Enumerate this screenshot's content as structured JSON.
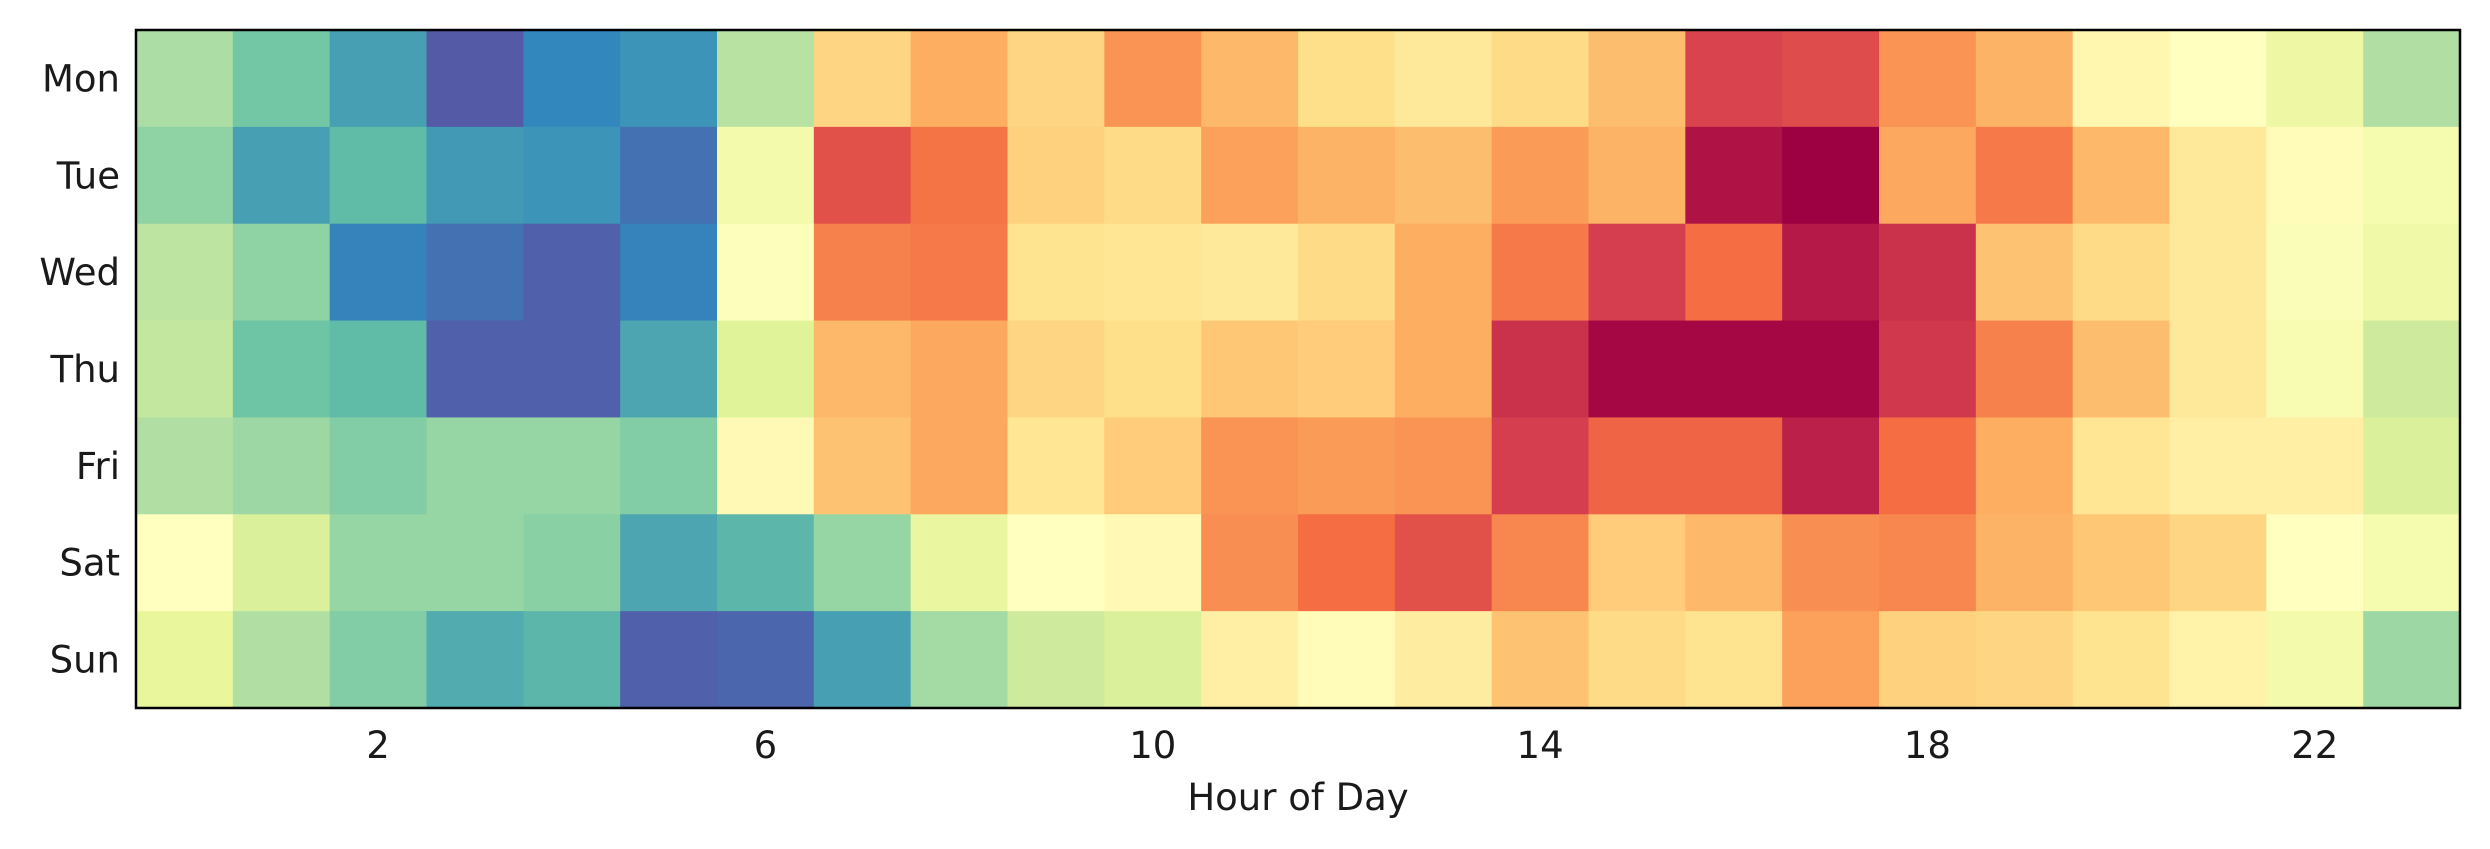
{
  "chart_data": {
    "type": "heatmap",
    "title": "",
    "xlabel": "Hour of Day",
    "ylabel": "",
    "x": [
      0,
      1,
      2,
      3,
      4,
      5,
      6,
      7,
      8,
      9,
      10,
      11,
      12,
      13,
      14,
      15,
      16,
      17,
      18,
      19,
      20,
      21,
      22,
      23
    ],
    "x_tick_values": [
      2,
      6,
      10,
      14,
      18,
      22
    ],
    "x_tick_labels": [
      "2",
      "6",
      "10",
      "14",
      "18",
      "22"
    ],
    "y_categories": [
      "Mon",
      "Tue",
      "Wed",
      "Thu",
      "Fri",
      "Sat",
      "Sun"
    ],
    "colormap": "Spectral_r",
    "value_range": [
      0,
      1
    ],
    "grid": false,
    "legend": "none",
    "values": [
      [
        0.3,
        0.22,
        0.14,
        0.02,
        0.1,
        0.12,
        0.32,
        0.62,
        0.7,
        0.62,
        0.74,
        0.68,
        0.6,
        0.57,
        0.61,
        0.67,
        0.89,
        0.87,
        0.74,
        0.69,
        0.53,
        0.5,
        0.43,
        0.31
      ],
      [
        0.26,
        0.14,
        0.19,
        0.13,
        0.12,
        0.06,
        0.45,
        0.86,
        0.79,
        0.63,
        0.61,
        0.72,
        0.69,
        0.67,
        0.73,
        0.69,
        0.97,
        1.0,
        0.71,
        0.78,
        0.68,
        0.57,
        0.51,
        0.46
      ],
      [
        0.33,
        0.26,
        0.09,
        0.06,
        0.03,
        0.09,
        0.49,
        0.77,
        0.78,
        0.59,
        0.58,
        0.57,
        0.61,
        0.7,
        0.78,
        0.9,
        0.8,
        0.96,
        0.92,
        0.66,
        0.61,
        0.57,
        0.48,
        0.44
      ],
      [
        0.34,
        0.21,
        0.19,
        0.03,
        0.03,
        0.15,
        0.39,
        0.68,
        0.71,
        0.62,
        0.6,
        0.65,
        0.64,
        0.7,
        0.92,
        0.99,
        0.99,
        0.99,
        0.91,
        0.77,
        0.67,
        0.57,
        0.47,
        0.36
      ],
      [
        0.31,
        0.28,
        0.24,
        0.27,
        0.27,
        0.24,
        0.52,
        0.66,
        0.71,
        0.58,
        0.64,
        0.74,
        0.73,
        0.74,
        0.9,
        0.82,
        0.82,
        0.95,
        0.8,
        0.7,
        0.58,
        0.55,
        0.55,
        0.38
      ],
      [
        0.5,
        0.38,
        0.27,
        0.27,
        0.25,
        0.15,
        0.18,
        0.27,
        0.42,
        0.5,
        0.52,
        0.75,
        0.8,
        0.86,
        0.76,
        0.64,
        0.68,
        0.75,
        0.76,
        0.69,
        0.65,
        0.62,
        0.5,
        0.46
      ],
      [
        0.41,
        0.31,
        0.24,
        0.16,
        0.18,
        0.03,
        0.04,
        0.14,
        0.29,
        0.36,
        0.38,
        0.55,
        0.51,
        0.56,
        0.66,
        0.61,
        0.59,
        0.72,
        0.63,
        0.62,
        0.59,
        0.54,
        0.45,
        0.28
      ]
    ]
  }
}
